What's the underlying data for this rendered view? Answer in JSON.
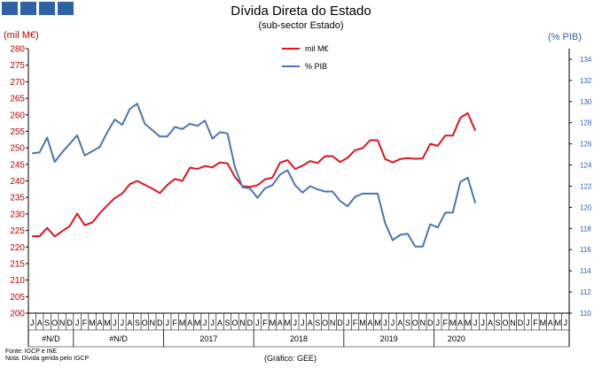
{
  "chart_data": {
    "type": "line",
    "title": "Dívida Direta do Estado",
    "subtitle": "(sub-sector Estado)",
    "ylabel_left": "(mil M€)",
    "ylabel_right": "(% PIB)",
    "ylim_left": [
      200,
      280
    ],
    "ylim_right": [
      110,
      135
    ],
    "yticks_left": [
      200,
      205,
      210,
      215,
      220,
      225,
      230,
      235,
      240,
      245,
      250,
      255,
      260,
      265,
      270,
      275,
      280
    ],
    "yticks_right": [
      110,
      112,
      114,
      116,
      118,
      120,
      122,
      124,
      126,
      128,
      130,
      132,
      134
    ],
    "months": [
      "J",
      "A",
      "S",
      "O",
      "N",
      "D",
      "J",
      "F",
      "M",
      "A",
      "M",
      "J",
      "J",
      "A",
      "S",
      "O",
      "N",
      "D",
      "J",
      "F",
      "M",
      "A",
      "M",
      "J",
      "J",
      "A",
      "S",
      "O",
      "N",
      "D",
      "J",
      "F",
      "M",
      "A",
      "M",
      "J",
      "J",
      "A",
      "S",
      "O",
      "N",
      "D",
      "J",
      "F",
      "M",
      "A",
      "M",
      "J",
      "J",
      "A",
      "S",
      "O",
      "N",
      "D",
      "J",
      "F",
      "M",
      "A",
      "M",
      "J",
      "J",
      "A",
      "S",
      "O",
      "N",
      "D",
      "J",
      "F",
      "M",
      "A",
      "M",
      "J"
    ],
    "year_groups": [
      {
        "label": "#N/D",
        "count": 6
      },
      {
        "label": "#N/D",
        "count": 12
      },
      {
        "label": "2017",
        "count": 12
      },
      {
        "label": "2018",
        "count": 12
      },
      {
        "label": "2019",
        "count": 12
      },
      {
        "label": "2020",
        "count": 6
      }
    ],
    "series": [
      {
        "name": "mil M€",
        "axis": "left",
        "color": "#e0141e",
        "values": [
          223.2,
          223.3,
          225.8,
          223.2,
          224.8,
          226.3,
          230.1,
          226.6,
          227.4,
          230.2,
          232.6,
          234.8,
          236.2,
          239.0,
          240.0,
          238.8,
          237.7,
          236.3,
          238.8,
          240.6,
          240.0,
          244.0,
          243.6,
          244.5,
          244.1,
          245.6,
          245.3,
          241.2,
          238.4,
          238.2,
          238.7,
          240.5,
          241.0,
          245.5,
          246.3,
          243.6,
          244.6,
          246.0,
          245.4,
          247.5,
          247.5,
          245.7,
          247.0,
          249.3,
          249.9,
          252.3,
          252.3,
          246.6,
          245.6,
          246.6,
          246.9,
          246.7,
          246.8,
          251.2,
          250.6,
          253.7,
          253.7,
          259.1,
          260.5,
          255.2
        ]
      },
      {
        "name": "% PIB",
        "axis": "right",
        "color": "#4a76b0",
        "values": [
          125.1,
          125.2,
          126.6,
          124.3,
          125.2,
          126.0,
          126.8,
          124.9,
          125.3,
          125.7,
          127.1,
          128.3,
          127.8,
          129.3,
          129.8,
          127.9,
          127.3,
          126.7,
          126.7,
          127.6,
          127.4,
          127.9,
          127.7,
          128.2,
          126.5,
          127.1,
          127.0,
          123.8,
          121.9,
          121.8,
          120.9,
          121.8,
          122.1,
          123.1,
          123.5,
          122.1,
          121.4,
          122.0,
          121.7,
          121.5,
          121.5,
          120.6,
          120.1,
          121.0,
          121.3,
          121.3,
          121.3,
          118.5,
          116.9,
          117.4,
          117.5,
          116.3,
          116.3,
          118.4,
          118.1,
          119.5,
          119.5,
          122.4,
          122.8,
          120.4
        ]
      }
    ],
    "grid": false,
    "legend_position": "top-center"
  },
  "sources": {
    "line1": "Fonte: IGCP e INE",
    "line2": "Nota: Dívida gerida pelo IGCP"
  },
  "graphic_credit": "(Gráfico:  GEE)"
}
